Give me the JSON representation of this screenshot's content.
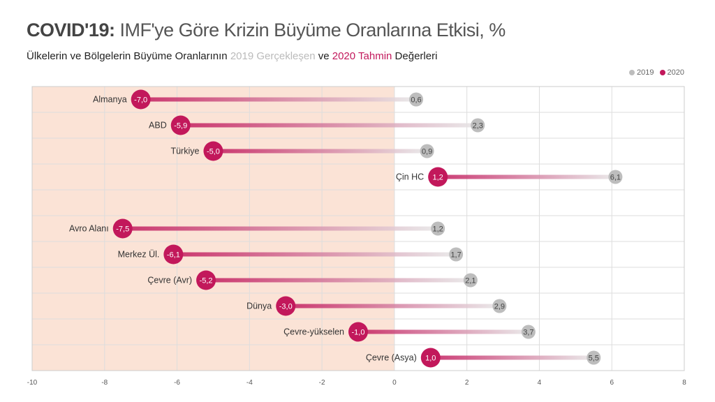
{
  "title_bold": "COVID'19:",
  "title_rest": "IMF'ye Göre Krizin Büyüme Oranlarına Etkisi, %",
  "subtitle": {
    "part1": "Ülkelerin ve Bölgelerin Büyüme Oranlarının",
    "y2019": "2019 Gerçekleşen",
    "part2": "ve",
    "y2020": "2020 Tahmin",
    "part3": "Değerleri"
  },
  "legend": {
    "s2019": "2019",
    "s2020": "2020",
    "position": "top-right"
  },
  "colors": {
    "s2019": "#bdbdbd",
    "s2020": "#c2185b",
    "negative_region": "#fbe3d6",
    "grid": "#dddddd"
  },
  "chart_data": {
    "type": "dumbbell",
    "xlim": [
      -10,
      8
    ],
    "x_ticks": [
      "-10",
      "-8",
      "-6",
      "-4",
      "-2",
      "0",
      "2",
      "4",
      "6",
      "8"
    ],
    "shaded_region": [
      -10,
      0
    ],
    "grid": true,
    "rows": [
      {
        "label": "Almanya",
        "v2019": 0.6,
        "v2020": -7.0,
        "t2019": "0,6",
        "t2020": "-7,0"
      },
      {
        "label": "ABD",
        "v2019": 2.3,
        "v2020": -5.9,
        "t2019": "2,3",
        "t2020": "-5,9"
      },
      {
        "label": "Türkiye",
        "v2019": 0.9,
        "v2020": -5.0,
        "t2019": "0,9",
        "t2020": "-5,0"
      },
      {
        "label": "Çin HC",
        "v2019": 6.1,
        "v2020": 1.2,
        "t2019": "6,1",
        "t2020": "1,2"
      },
      {
        "label": "",
        "v2019": null,
        "v2020": null,
        "t2019": "",
        "t2020": ""
      },
      {
        "label": "Avro Alanı",
        "v2019": 1.2,
        "v2020": -7.5,
        "t2019": "1,2",
        "t2020": "-7,5"
      },
      {
        "label": "Merkez Ül.",
        "v2019": 1.7,
        "v2020": -6.1,
        "t2019": "1,7",
        "t2020": "-6,1"
      },
      {
        "label": "Çevre (Avr)",
        "v2019": 2.1,
        "v2020": -5.2,
        "t2019": "2,1",
        "t2020": "-5,2"
      },
      {
        "label": "Dünya",
        "v2019": 2.9,
        "v2020": -3.0,
        "t2019": "2,9",
        "t2020": "-3,0"
      },
      {
        "label": "Çevre-yükselen",
        "v2019": 3.7,
        "v2020": -1.0,
        "t2019": "3,7",
        "t2020": "-1,0"
      },
      {
        "label": "Çevre (Asya)",
        "v2019": 5.5,
        "v2020": 1.0,
        "t2019": "5,5",
        "t2020": "1,0"
      }
    ]
  }
}
